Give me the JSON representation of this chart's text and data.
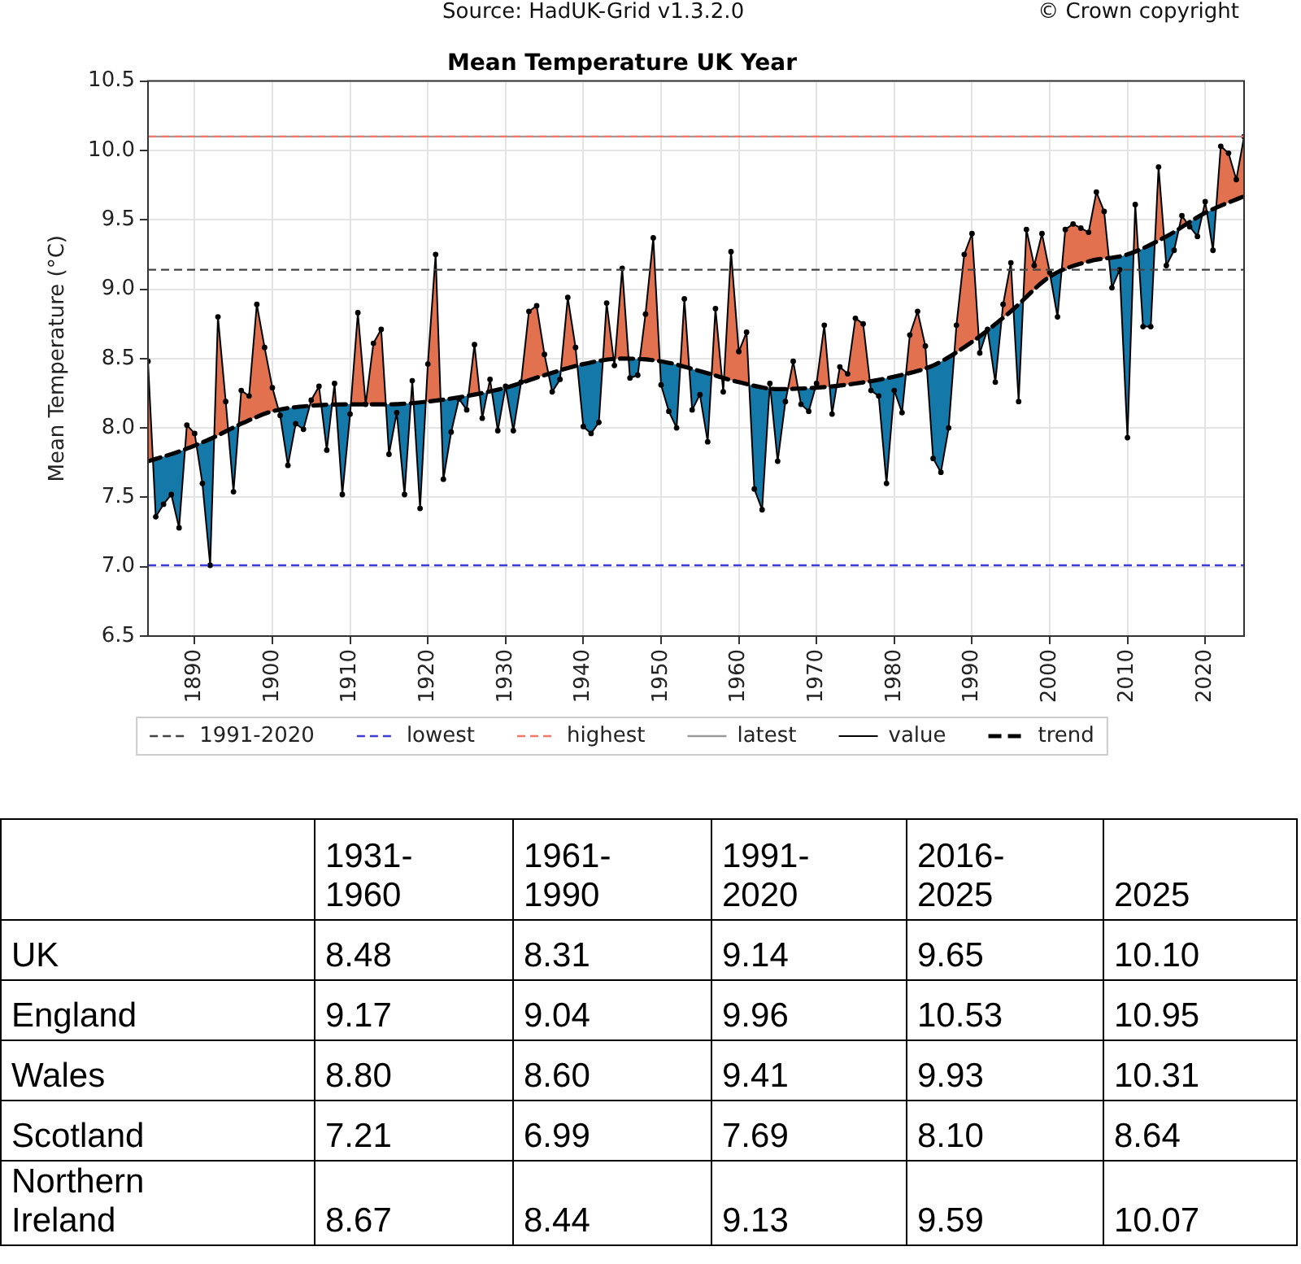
{
  "chart_data": [
    {
      "type": "line",
      "title": "Mean Temperature UK Year",
      "ylabel": "Mean Temperature (°C)",
      "annotations": [
        "Source: HadUK-Grid v1.3.2.0",
        "© Crown copyright"
      ],
      "xlim": [
        1884,
        2025
      ],
      "xticks": [
        1890,
        1900,
        1910,
        1920,
        1930,
        1940,
        1950,
        1960,
        1970,
        1980,
        1990,
        2000,
        2010,
        2020
      ],
      "ylim": [
        6.5,
        10.5
      ],
      "yticks": [
        6.5,
        {
          "value": 7,
          "label": "7.0"
        },
        7.5,
        {
          "value": 8,
          "label": "8.0"
        },
        8.5,
        {
          "value": 9,
          "label": "9.0"
        },
        9.5,
        {
          "value": 10,
          "label": "10.0"
        },
        10.5
      ],
      "grid": true,
      "legend": "bottom",
      "ref_lines": [
        {
          "axis": "y",
          "value": 7.01,
          "label": "lowest",
          "color": "#3c3cd8",
          "line_style": "dashed"
        },
        {
          "axis": "y",
          "value": 10.1,
          "label": "highest",
          "color": "#f07868",
          "line_style": "dashed"
        },
        {
          "axis": "y",
          "value": 10.1,
          "label": "latest",
          "color": "#9a9a9a",
          "line_style": "solid"
        }
      ],
      "series": [
        {
          "name": "1991-2020",
          "type": "line",
          "color": "#444444",
          "line_style": "dashed",
          "x": [
            1884,
            2025
          ],
          "values": [
            9.14,
            9.14
          ]
        },
        {
          "name": "value",
          "type": "line",
          "color": "#000000",
          "marker": "circle",
          "x": [
            1884,
            1885,
            1886,
            1887,
            1888,
            1889,
            1890,
            1891,
            1892,
            1893,
            1894,
            1895,
            1896,
            1897,
            1898,
            1899,
            1900,
            1901,
            1902,
            1903,
            1904,
            1905,
            1906,
            1907,
            1908,
            1909,
            1910,
            1911,
            1912,
            1913,
            1914,
            1915,
            1916,
            1917,
            1918,
            1919,
            1920,
            1921,
            1922,
            1923,
            1924,
            1925,
            1926,
            1927,
            1928,
            1929,
            1930,
            1931,
            1932,
            1933,
            1934,
            1935,
            1936,
            1937,
            1938,
            1939,
            1940,
            1941,
            1942,
            1943,
            1944,
            1945,
            1946,
            1947,
            1948,
            1949,
            1950,
            1951,
            1952,
            1953,
            1954,
            1955,
            1956,
            1957,
            1958,
            1959,
            1960,
            1961,
            1962,
            1963,
            1964,
            1965,
            1966,
            1967,
            1968,
            1969,
            1970,
            1971,
            1972,
            1973,
            1974,
            1975,
            1976,
            1977,
            1978,
            1979,
            1980,
            1981,
            1982,
            1983,
            1984,
            1985,
            1986,
            1987,
            1988,
            1989,
            1990,
            1991,
            1992,
            1993,
            1994,
            1995,
            1996,
            1997,
            1998,
            1999,
            2000,
            2001,
            2002,
            2003,
            2004,
            2005,
            2006,
            2007,
            2008,
            2009,
            2010,
            2011,
            2012,
            2013,
            2014,
            2015,
            2016,
            2017,
            2018,
            2019,
            2020,
            2021,
            2022,
            2023,
            2024,
            2025
          ],
          "values": [
            8.48,
            7.36,
            7.45,
            7.52,
            7.28,
            8.02,
            7.96,
            7.6,
            7.01,
            8.8,
            8.19,
            7.54,
            8.27,
            8.23,
            8.89,
            8.58,
            8.29,
            8.09,
            7.73,
            8.03,
            7.99,
            8.2,
            8.3,
            7.84,
            8.32,
            7.52,
            8.1,
            8.83,
            8.17,
            8.61,
            8.71,
            7.81,
            8.11,
            7.52,
            8.34,
            7.42,
            8.46,
            9.25,
            7.63,
            7.97,
            8.21,
            8.13,
            8.6,
            8.07,
            8.35,
            7.98,
            8.3,
            7.98,
            8.33,
            8.84,
            8.88,
            8.53,
            8.26,
            8.35,
            8.94,
            8.58,
            8.01,
            7.96,
            8.04,
            8.9,
            8.45,
            9.15,
            8.36,
            8.38,
            8.82,
            9.37,
            8.31,
            8.12,
            8.0,
            8.93,
            8.13,
            8.24,
            7.9,
            8.86,
            8.26,
            9.27,
            8.55,
            8.69,
            7.56,
            7.41,
            8.32,
            7.76,
            8.19,
            8.48,
            8.17,
            8.12,
            8.32,
            8.74,
            8.1,
            8.44,
            8.39,
            8.79,
            8.75,
            8.27,
            8.23,
            7.6,
            8.27,
            8.11,
            8.67,
            8.84,
            8.59,
            7.78,
            7.68,
            8.0,
            8.74,
            9.25,
            9.4,
            8.54,
            8.71,
            8.33,
            8.89,
            9.19,
            8.19,
            9.43,
            9.17,
            9.4,
            9.12,
            8.8,
            9.43,
            9.47,
            9.44,
            9.41,
            9.7,
            9.56,
            9.01,
            9.14,
            7.93,
            9.61,
            8.73,
            8.73,
            9.88,
            9.17,
            9.28,
            9.53,
            9.45,
            9.38,
            9.63,
            9.28,
            10.03,
            9.98,
            9.79,
            10.1
          ]
        },
        {
          "name": "trend",
          "type": "line",
          "color": "#000000",
          "line_style": "dashed",
          "x": [
            1884,
            1888,
            1892,
            1896,
            1900,
            1905,
            1910,
            1915,
            1920,
            1925,
            1930,
            1935,
            1940,
            1945,
            1950,
            1955,
            1960,
            1965,
            1970,
            1975,
            1980,
            1985,
            1990,
            1995,
            2000,
            2005,
            2010,
            2015,
            2020,
            2025
          ],
          "values": [
            7.76,
            7.83,
            7.92,
            8.03,
            8.12,
            8.16,
            8.17,
            8.17,
            8.19,
            8.23,
            8.29,
            8.38,
            8.46,
            8.5,
            8.48,
            8.41,
            8.33,
            8.28,
            8.29,
            8.32,
            8.37,
            8.45,
            8.62,
            8.84,
            9.09,
            9.2,
            9.25,
            9.38,
            9.55,
            9.67
          ]
        }
      ]
    },
    {
      "type": "heatmap",
      "data_labels": true,
      "categories": [
        "1931-1960",
        "1961-1990",
        "1991-2020",
        "2016-2025",
        "2025"
      ],
      "y_categories": [
        "UK",
        "England",
        "Wales",
        "Scotland",
        "Northern Ireland"
      ],
      "cells": [
        [
          8.48,
          8.31,
          9.14,
          9.65,
          10.1
        ],
        [
          9.17,
          9.04,
          9.96,
          10.53,
          10.95
        ],
        [
          8.8,
          8.6,
          9.41,
          9.93,
          10.31
        ],
        [
          7.21,
          6.99,
          7.69,
          8.1,
          8.64
        ],
        [
          8.67,
          8.44,
          9.13,
          9.59,
          10.07
        ]
      ],
      "cell_labels": [
        [
          "8.48",
          "8.31",
          "9.14",
          "9.65",
          "10.10"
        ],
        [
          "9.17",
          "9.04",
          "9.96",
          "10.53",
          "10.95"
        ],
        [
          "8.80",
          "8.60",
          "9.41",
          "9.93",
          "10.31"
        ],
        [
          "7.21",
          "6.99",
          "7.69",
          "8.10",
          "8.64"
        ],
        [
          "8.67",
          "8.44",
          "9.13",
          "9.59",
          "10.07"
        ]
      ]
    }
  ]
}
